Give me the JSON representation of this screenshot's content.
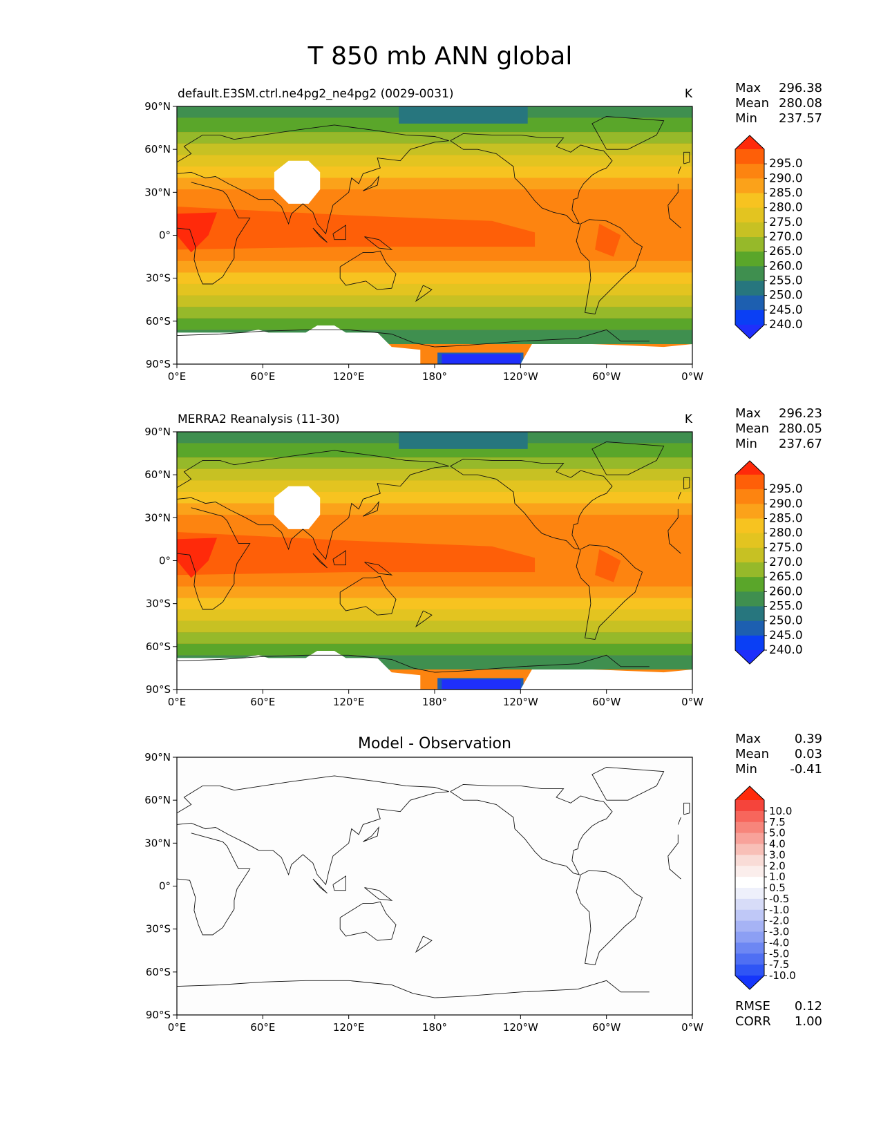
{
  "title": "T 850 mb ANN global",
  "panels": [
    {
      "id": "model",
      "left_title": "default.E3SM.ctrl.ne4pg2_ne4pg2 (0029-0031)",
      "center_title": "",
      "units": "K",
      "stats": [
        {
          "label": "Max",
          "value": "296.38"
        },
        {
          "label": "Mean",
          "value": "280.08"
        },
        {
          "label": "Min",
          "value": "237.57"
        }
      ],
      "colorbar": "abs"
    },
    {
      "id": "obs",
      "left_title": "MERRA2 Reanalysis (11-30)",
      "center_title": "",
      "units": "K",
      "stats": [
        {
          "label": "Max",
          "value": "296.23"
        },
        {
          "label": "Mean",
          "value": "280.05"
        },
        {
          "label": "Min",
          "value": "237.67"
        }
      ],
      "colorbar": "abs"
    },
    {
      "id": "diff",
      "left_title": "",
      "center_title": "Model - Observation",
      "units": "",
      "stats": [
        {
          "label": "Max",
          "value": "0.39"
        },
        {
          "label": "Mean",
          "value": "0.03"
        },
        {
          "label": "Min",
          "value": "-0.41"
        }
      ],
      "colorbar": "diff",
      "metrics": [
        {
          "label": "RMSE",
          "value": "0.12"
        },
        {
          "label": "CORR",
          "value": "1.00"
        }
      ]
    }
  ],
  "axes": {
    "lat_ticks": [
      "90°N",
      "60°N",
      "30°N",
      "0°",
      "30°S",
      "60°S",
      "90°S"
    ],
    "lon_ticks": [
      "0°E",
      "60°E",
      "120°E",
      "180°",
      "120°W",
      "60°W",
      "0°W"
    ],
    "lat_range": [
      -90,
      90
    ],
    "lon_range": [
      0,
      360
    ]
  },
  "colorbars": {
    "abs": {
      "labels": [
        "295.0",
        "290.0",
        "285.0",
        "280.0",
        "275.0",
        "270.0",
        "265.0",
        "260.0",
        "255.0",
        "250.0",
        "245.0",
        "240.0"
      ],
      "colors": [
        "#ff2a0a",
        "#fe5f08",
        "#fd8410",
        "#fba21a",
        "#f7c320",
        "#e3c420",
        "#c7c123",
        "#96b92a",
        "#5aa62a",
        "#3f8f4f",
        "#27767e",
        "#1d5fb0",
        "#0a3ff5",
        "#1f2ffb"
      ]
    },
    "diff": {
      "labels": [
        "10.0",
        "7.5",
        "5.0",
        "4.0",
        "3.0",
        "2.0",
        "1.0",
        "0.5",
        "-0.5",
        "-1.0",
        "-2.0",
        "-3.0",
        "-4.0",
        "-5.0",
        "-7.5",
        "-10.0"
      ],
      "colors": [
        "#ff2a0a",
        "#f5443b",
        "#f7665c",
        "#f7857b",
        "#f8a29a",
        "#f8bfb7",
        "#f9dcd7",
        "#fbeeec",
        "#ffffff",
        "#eef0fb",
        "#d7dcf8",
        "#bfc8f7",
        "#a6b3f5",
        "#8c9ff4",
        "#6d87f3",
        "#4f6ff3",
        "#2f55f5",
        "#1536fb"
      ]
    }
  },
  "fields": {
    "model_bands": [
      {
        "lat_top": 90,
        "lat_bot": 82,
        "color": "#3f8f4f"
      },
      {
        "lat_top": 82,
        "lat_bot": 72,
        "color": "#5aa62a"
      },
      {
        "lat_top": 72,
        "lat_bot": 64,
        "color": "#96b92a"
      },
      {
        "lat_top": 64,
        "lat_bot": 56,
        "color": "#c7c123"
      },
      {
        "lat_top": 56,
        "lat_bot": 48,
        "color": "#e3c420"
      },
      {
        "lat_top": 48,
        "lat_bot": 40,
        "color": "#f7c320"
      },
      {
        "lat_top": 40,
        "lat_bot": 32,
        "color": "#fba21a"
      },
      {
        "lat_top": 32,
        "lat_bot": -18,
        "color": "#fd8410"
      },
      {
        "lat_top": -18,
        "lat_bot": -26,
        "color": "#fba21a"
      },
      {
        "lat_top": -26,
        "lat_bot": -34,
        "color": "#f7c320"
      },
      {
        "lat_top": -34,
        "lat_bot": -42,
        "color": "#e3c420"
      },
      {
        "lat_top": -42,
        "lat_bot": -50,
        "color": "#c7c123"
      },
      {
        "lat_top": -50,
        "lat_bot": -58,
        "color": "#96b92a"
      },
      {
        "lat_top": -58,
        "lat_bot": -66,
        "color": "#5aa62a"
      },
      {
        "lat_top": -66,
        "lat_bot": -76,
        "color": "#3f8f4f"
      }
    ]
  }
}
